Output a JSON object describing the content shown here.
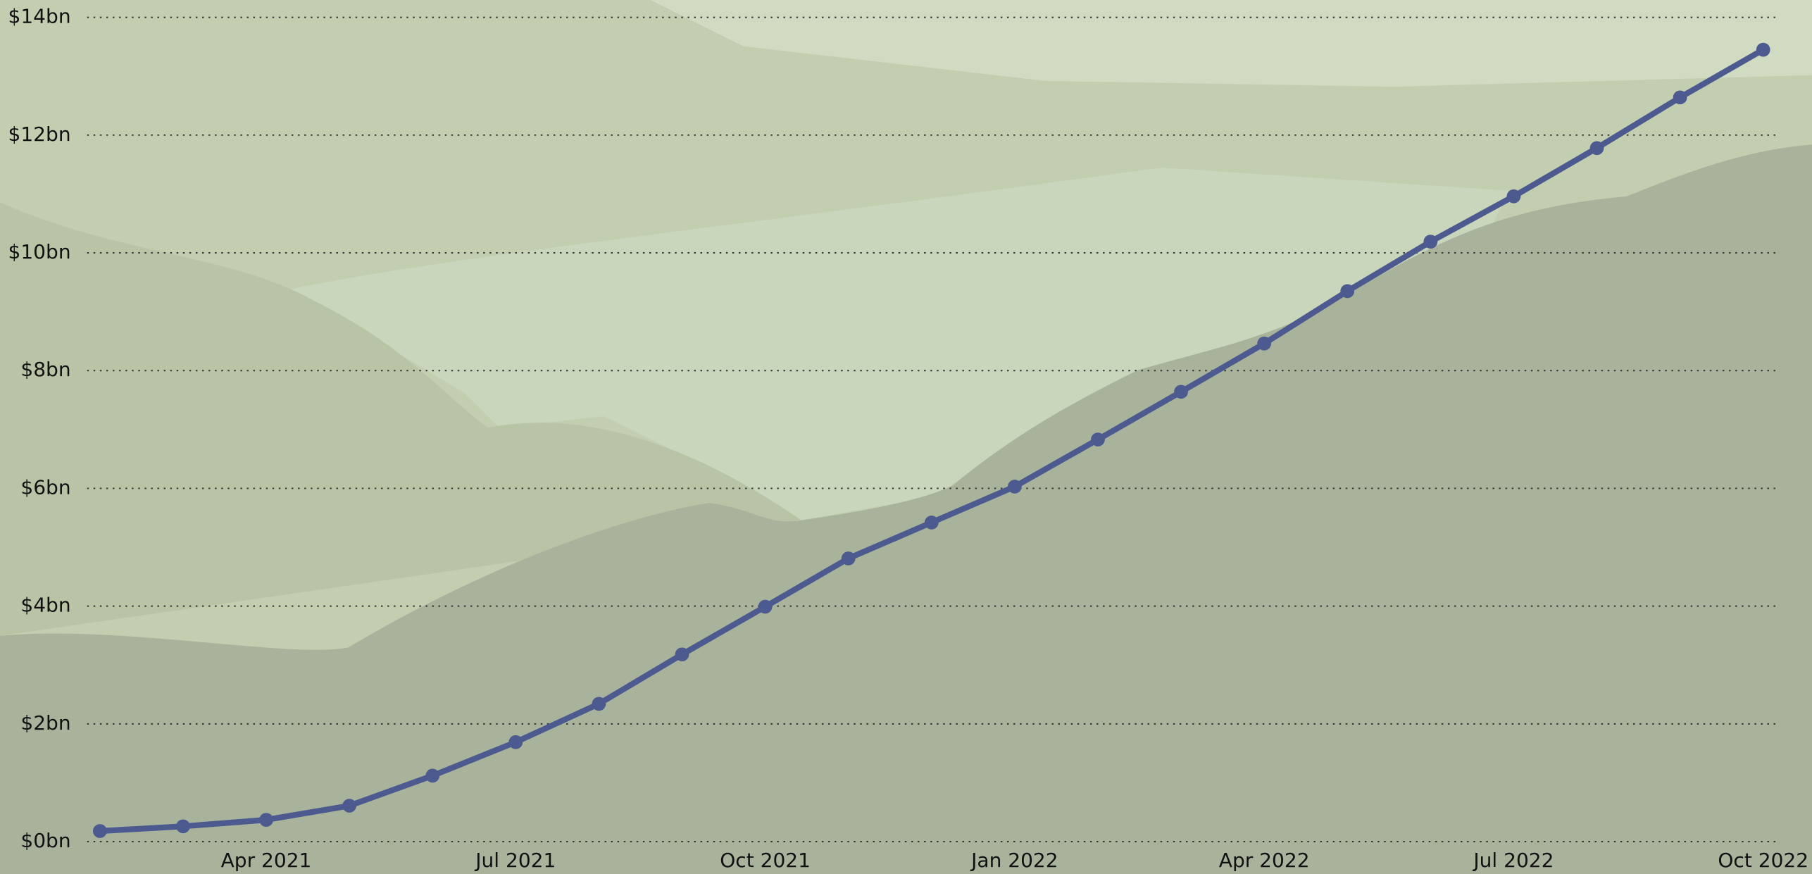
{
  "chart_data": {
    "type": "line",
    "categories": [
      null,
      null,
      "Apr 2021",
      null,
      null,
      "Jul 2021",
      null,
      null,
      "Oct 2021",
      null,
      null,
      "Jan 2022",
      null,
      null,
      "Apr 2022",
      null,
      null,
      "Jul 2022",
      null,
      null,
      "Oct 2022"
    ],
    "values": [
      0.18,
      0.26,
      0.37,
      0.61,
      1.12,
      1.69,
      2.34,
      3.18,
      3.99,
      4.81,
      5.42,
      6.03,
      6.83,
      7.64,
      8.46,
      9.35,
      10.19,
      10.96,
      11.78,
      12.64,
      13.45
    ],
    "color": "#4c5a8f",
    "ylim": [
      0,
      14
    ],
    "yticks": [
      {
        "value": 0,
        "label": "$0bn"
      },
      {
        "value": 2,
        "label": "$2bn"
      },
      {
        "value": 4,
        "label": "$4bn"
      },
      {
        "value": 6,
        "label": "$6bn"
      },
      {
        "value": 8,
        "label": "$8bn"
      },
      {
        "value": 10,
        "label": "$10bn"
      },
      {
        "value": 12,
        "label": "$12bn"
      },
      {
        "value": 14,
        "label": "$14bn"
      }
    ],
    "grid": true
  }
}
